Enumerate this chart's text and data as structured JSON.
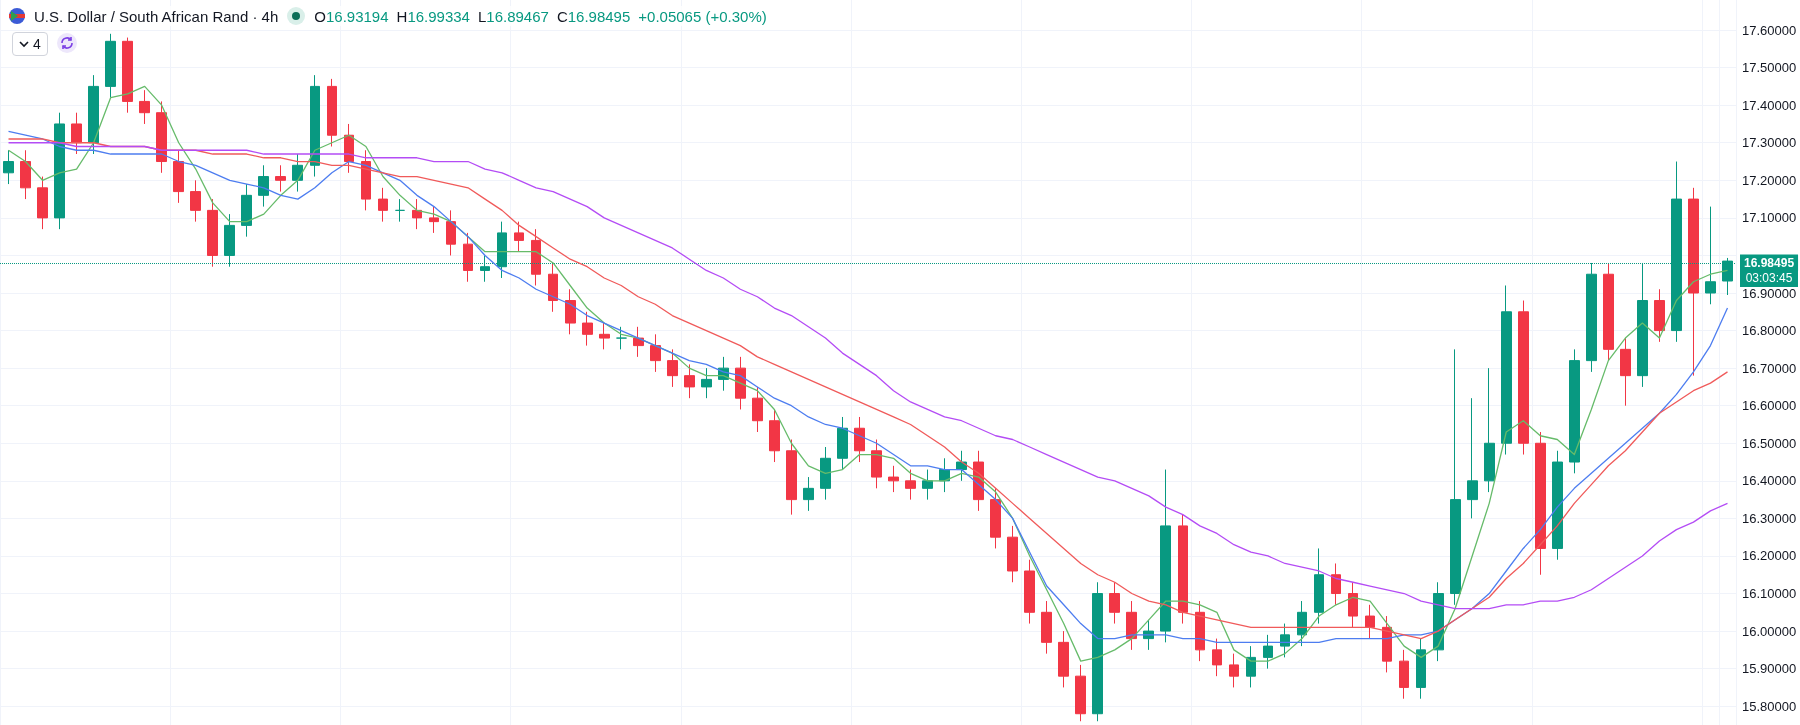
{
  "chart_data": {
    "type": "candlestick",
    "title": "U.S. Dollar / South African Rand · 4h",
    "annotations": [
      "O16.93194",
      "H16.99334",
      "L16.89467",
      "C16.98495",
      "+0.05065 (+0.30%)",
      "4",
      "03:03:45"
    ],
    "categories": [
      null,
      null,
      null,
      null,
      null,
      null,
      null,
      null,
      null,
      null,
      null,
      null,
      null,
      null,
      null,
      null,
      null,
      null,
      null,
      null,
      null,
      null,
      null,
      null,
      null,
      null,
      null,
      null,
      null,
      null,
      null,
      null,
      null,
      null,
      null,
      null,
      null,
      null,
      null,
      null,
      null,
      null,
      null,
      null,
      null,
      null,
      null,
      null,
      null,
      null,
      null,
      null,
      null,
      null,
      null,
      null,
      null,
      null,
      null,
      null,
      null,
      null,
      null,
      null,
      null,
      null,
      null,
      null,
      null,
      null,
      null,
      null,
      null,
      null,
      null,
      null,
      null,
      null,
      null,
      null,
      null,
      null,
      null,
      null,
      null,
      null,
      null,
      null,
      null,
      null,
      null,
      null,
      null,
      null,
      null,
      null,
      null,
      null,
      null,
      null,
      null,
      null
    ],
    "ohlc": [
      [
        17.22,
        17.28,
        17.19,
        17.25
      ],
      [
        17.25,
        17.28,
        17.15,
        17.18
      ],
      [
        17.18,
        17.21,
        17.07,
        17.1
      ],
      [
        17.1,
        17.38,
        17.07,
        17.35
      ],
      [
        17.35,
        17.38,
        17.27,
        17.3
      ],
      [
        17.3,
        17.48,
        17.27,
        17.45
      ],
      [
        17.45,
        17.59,
        17.42,
        17.57
      ],
      [
        17.57,
        17.58,
        17.38,
        17.41
      ],
      [
        17.41,
        17.44,
        17.35,
        17.38
      ],
      [
        17.38,
        17.41,
        17.22,
        17.25
      ],
      [
        17.25,
        17.28,
        17.14,
        17.17
      ],
      [
        17.17,
        17.2,
        17.09,
        17.12
      ],
      [
        17.12,
        17.15,
        16.97,
        17.0
      ],
      [
        17.0,
        17.11,
        16.97,
        17.08
      ],
      [
        17.08,
        17.19,
        17.05,
        17.16
      ],
      [
        17.16,
        17.24,
        17.13,
        17.21
      ],
      [
        17.21,
        17.24,
        17.17,
        17.2
      ],
      [
        17.2,
        17.27,
        17.17,
        17.24
      ],
      [
        17.24,
        17.48,
        17.21,
        17.45
      ],
      [
        17.45,
        17.47,
        17.29,
        17.32
      ],
      [
        17.32,
        17.35,
        17.22,
        17.25
      ],
      [
        17.25,
        17.28,
        17.12,
        17.15
      ],
      [
        17.15,
        17.18,
        17.09,
        17.12
      ],
      [
        17.12,
        17.15,
        17.09,
        17.12
      ],
      [
        17.12,
        17.15,
        17.07,
        17.1
      ],
      [
        17.1,
        17.13,
        17.06,
        17.09
      ],
      [
        17.09,
        17.12,
        17.0,
        17.03
      ],
      [
        17.03,
        17.06,
        16.93,
        16.96
      ],
      [
        16.96,
        17.0,
        16.93,
        16.97
      ],
      [
        16.97,
        17.09,
        16.94,
        17.06
      ],
      [
        17.06,
        17.09,
        17.01,
        17.04
      ],
      [
        17.04,
        17.07,
        16.92,
        16.95
      ],
      [
        16.95,
        16.98,
        16.85,
        16.88
      ],
      [
        16.88,
        16.91,
        16.79,
        16.82
      ],
      [
        16.82,
        16.85,
        16.76,
        16.79
      ],
      [
        16.79,
        16.82,
        16.75,
        16.78
      ],
      [
        16.78,
        16.81,
        16.75,
        16.78
      ],
      [
        16.78,
        16.81,
        16.73,
        16.76
      ],
      [
        16.76,
        16.79,
        16.69,
        16.72
      ],
      [
        16.72,
        16.75,
        16.65,
        16.68
      ],
      [
        16.68,
        16.71,
        16.62,
        16.65
      ],
      [
        16.65,
        16.7,
        16.62,
        16.67
      ],
      [
        16.67,
        16.73,
        16.64,
        16.7
      ],
      [
        16.7,
        16.73,
        16.59,
        16.62
      ],
      [
        16.62,
        16.65,
        16.53,
        16.56
      ],
      [
        16.56,
        16.59,
        16.45,
        16.48
      ],
      [
        16.48,
        16.51,
        16.31,
        16.35
      ],
      [
        16.35,
        16.41,
        16.32,
        16.38
      ],
      [
        16.38,
        16.49,
        16.35,
        16.46
      ],
      [
        16.46,
        16.57,
        16.43,
        16.54
      ],
      [
        16.54,
        16.57,
        16.45,
        16.48
      ],
      [
        16.48,
        16.51,
        16.38,
        16.41
      ],
      [
        16.41,
        16.44,
        16.37,
        16.4
      ],
      [
        16.4,
        16.43,
        16.35,
        16.38
      ],
      [
        16.38,
        16.43,
        16.35,
        16.4
      ],
      [
        16.4,
        16.46,
        16.37,
        16.43
      ],
      [
        16.43,
        16.48,
        16.4,
        16.45
      ],
      [
        16.45,
        16.48,
        16.32,
        16.35
      ],
      [
        16.35,
        16.38,
        16.22,
        16.25
      ],
      [
        16.25,
        16.28,
        16.13,
        16.16
      ],
      [
        16.16,
        16.19,
        16.02,
        16.05
      ],
      [
        16.05,
        16.08,
        15.94,
        15.97
      ],
      [
        15.97,
        16.0,
        15.85,
        15.88
      ],
      [
        15.88,
        15.91,
        15.76,
        15.78
      ],
      [
        15.78,
        16.13,
        15.76,
        16.1
      ],
      [
        16.1,
        16.13,
        16.02,
        16.05
      ],
      [
        16.05,
        16.08,
        15.95,
        15.98
      ],
      [
        15.98,
        16.03,
        15.95,
        16.0
      ],
      [
        16.0,
        16.43,
        15.97,
        16.28
      ],
      [
        16.28,
        16.31,
        16.02,
        16.05
      ],
      [
        16.05,
        16.08,
        15.92,
        15.95
      ],
      [
        15.95,
        15.98,
        15.88,
        15.91
      ],
      [
        15.91,
        15.94,
        15.85,
        15.88
      ],
      [
        15.88,
        15.96,
        15.85,
        15.93
      ],
      [
        15.93,
        15.99,
        15.9,
        15.96
      ],
      [
        15.96,
        16.02,
        15.93,
        15.99
      ],
      [
        15.99,
        16.08,
        15.96,
        16.05
      ],
      [
        16.05,
        16.22,
        16.02,
        16.15
      ],
      [
        16.15,
        16.18,
        16.07,
        16.1
      ],
      [
        16.1,
        16.13,
        16.01,
        16.04
      ],
      [
        16.04,
        16.07,
        15.98,
        16.01
      ],
      [
        16.01,
        16.04,
        15.89,
        15.92
      ],
      [
        15.92,
        15.95,
        15.82,
        15.85
      ],
      [
        15.85,
        15.98,
        15.82,
        15.95
      ],
      [
        15.95,
        16.13,
        15.92,
        16.1
      ],
      [
        16.1,
        16.75,
        16.07,
        16.35
      ],
      [
        16.35,
        16.62,
        16.3,
        16.4
      ],
      [
        16.4,
        16.7,
        16.37,
        16.5
      ],
      [
        16.5,
        16.92,
        16.47,
        16.85
      ],
      [
        16.85,
        16.88,
        16.47,
        16.5
      ],
      [
        16.5,
        16.53,
        16.15,
        16.22
      ],
      [
        16.22,
        16.48,
        16.19,
        16.45
      ],
      [
        16.45,
        16.75,
        16.42,
        16.72
      ],
      [
        16.72,
        16.98,
        16.69,
        16.95
      ],
      [
        16.95,
        16.98,
        16.72,
        16.75
      ],
      [
        16.75,
        16.78,
        16.6,
        16.68
      ],
      [
        16.68,
        16.98,
        16.65,
        16.88
      ],
      [
        16.88,
        16.91,
        16.77,
        16.8
      ],
      [
        16.8,
        17.25,
        16.77,
        17.15
      ],
      [
        17.15,
        17.18,
        16.68,
        16.9
      ],
      [
        16.9,
        17.13,
        16.87,
        16.93
      ],
      [
        16.93194,
        16.99334,
        16.89467,
        16.98495
      ]
    ],
    "series": [
      {
        "type": "line",
        "color": "#66bb6a",
        "values": [
          17.28,
          17.25,
          17.2,
          17.22,
          17.23,
          17.3,
          17.42,
          17.43,
          17.45,
          17.4,
          17.3,
          17.23,
          17.14,
          17.09,
          17.09,
          17.11,
          17.16,
          17.2,
          17.28,
          17.3,
          17.32,
          17.29,
          17.21,
          17.16,
          17.12,
          17.11,
          17.09,
          17.05,
          17.01,
          17.01,
          17.01,
          17.01,
          16.98,
          16.92,
          16.86,
          16.82,
          16.79,
          16.78,
          16.76,
          16.74,
          16.7,
          16.68,
          16.68,
          16.66,
          16.64,
          16.59,
          16.5,
          16.44,
          16.42,
          16.43,
          16.47,
          16.47,
          16.46,
          16.42,
          16.4,
          16.4,
          16.42,
          16.41,
          16.37,
          16.3,
          16.2,
          16.11,
          16.02,
          15.92,
          15.93,
          15.95,
          15.98,
          16.03,
          16.08,
          16.08,
          16.07,
          16.05,
          15.95,
          15.92,
          15.92,
          15.94,
          15.98,
          16.04,
          16.07,
          16.09,
          16.08,
          16.02,
          15.96,
          15.93,
          15.96,
          16.06,
          16.2,
          16.34,
          16.53,
          16.56,
          16.52,
          16.51,
          16.47,
          16.59,
          16.72,
          16.78,
          16.82,
          16.78,
          16.88,
          16.93,
          16.95,
          16.96
        ]
      },
      {
        "type": "line",
        "color": "#4d7df0",
        "values": [
          17.33,
          17.32,
          17.31,
          17.29,
          17.28,
          17.28,
          17.27,
          17.27,
          17.27,
          17.27,
          17.25,
          17.24,
          17.22,
          17.2,
          17.19,
          17.18,
          17.16,
          17.15,
          17.18,
          17.22,
          17.25,
          17.24,
          17.22,
          17.2,
          17.16,
          17.13,
          17.09,
          17.05,
          17.0,
          16.96,
          16.94,
          16.91,
          16.89,
          16.87,
          16.84,
          16.82,
          16.8,
          16.78,
          16.76,
          16.74,
          16.72,
          16.71,
          16.69,
          16.68,
          16.65,
          16.62,
          16.6,
          16.57,
          16.55,
          16.54,
          16.52,
          16.5,
          16.47,
          16.44,
          16.44,
          16.43,
          16.43,
          16.39,
          16.35,
          16.3,
          16.21,
          16.12,
          16.07,
          16.02,
          15.98,
          15.98,
          15.99,
          15.99,
          15.99,
          15.98,
          15.98,
          15.97,
          15.97,
          15.97,
          15.97,
          15.97,
          15.97,
          15.97,
          15.98,
          15.98,
          15.98,
          15.98,
          15.99,
          15.99,
          16.0,
          16.03,
          16.06,
          16.1,
          16.16,
          16.22,
          16.27,
          16.33,
          16.38,
          16.42,
          16.46,
          16.5,
          16.54,
          16.58,
          16.63,
          16.69,
          16.76,
          16.86
        ]
      },
      {
        "type": "line",
        "color": "#f05a5a",
        "values": [
          17.31,
          17.31,
          17.31,
          17.3,
          17.3,
          17.3,
          17.29,
          17.29,
          17.29,
          17.28,
          17.28,
          17.28,
          17.27,
          17.27,
          17.27,
          17.26,
          17.26,
          17.25,
          17.25,
          17.24,
          17.24,
          17.23,
          17.22,
          17.21,
          17.21,
          17.2,
          17.19,
          17.18,
          17.15,
          17.12,
          17.08,
          17.05,
          17.02,
          16.99,
          16.97,
          16.94,
          16.92,
          16.89,
          16.87,
          16.84,
          16.82,
          16.8,
          16.78,
          16.76,
          16.73,
          16.71,
          16.69,
          16.67,
          16.65,
          16.63,
          16.61,
          16.59,
          16.57,
          16.55,
          16.52,
          16.49,
          16.45,
          16.42,
          16.38,
          16.34,
          16.3,
          16.26,
          16.22,
          16.18,
          16.15,
          16.13,
          16.1,
          16.08,
          16.07,
          16.05,
          16.04,
          16.03,
          16.02,
          16.01,
          16.01,
          16.01,
          16.01,
          16.01,
          16.01,
          16.01,
          16.01,
          16.0,
          15.99,
          15.98,
          16.0,
          16.03,
          16.06,
          16.09,
          16.14,
          16.18,
          16.23,
          16.28,
          16.34,
          16.39,
          16.44,
          16.48,
          16.53,
          16.58,
          16.61,
          16.64,
          16.66,
          16.69
        ]
      },
      {
        "type": "line",
        "color": "#b44cf5",
        "values": [
          17.3,
          17.3,
          17.3,
          17.3,
          17.29,
          17.29,
          17.29,
          17.29,
          17.29,
          17.28,
          17.28,
          17.28,
          17.28,
          17.28,
          17.28,
          17.27,
          17.27,
          17.27,
          17.27,
          17.27,
          17.27,
          17.26,
          17.26,
          17.26,
          17.26,
          17.25,
          17.25,
          17.25,
          17.23,
          17.22,
          17.2,
          17.18,
          17.17,
          17.15,
          17.13,
          17.1,
          17.08,
          17.06,
          17.04,
          17.02,
          16.99,
          16.96,
          16.94,
          16.91,
          16.89,
          16.86,
          16.84,
          16.81,
          16.78,
          16.74,
          16.71,
          16.68,
          16.64,
          16.61,
          16.59,
          16.57,
          16.56,
          16.54,
          16.52,
          16.51,
          16.49,
          16.47,
          16.45,
          16.43,
          16.41,
          16.4,
          16.38,
          16.36,
          16.33,
          16.31,
          16.28,
          16.26,
          16.23,
          16.21,
          16.2,
          16.18,
          16.17,
          16.16,
          16.14,
          16.13,
          16.12,
          16.11,
          16.1,
          16.08,
          16.07,
          16.06,
          16.06,
          16.06,
          16.07,
          16.07,
          16.08,
          16.08,
          16.09,
          16.11,
          16.14,
          16.17,
          16.2,
          16.24,
          16.27,
          16.29,
          16.32,
          16.34
        ]
      }
    ],
    "ylim": [
      15.75,
      17.68
    ],
    "yticks": [
      {
        "value": 15.8,
        "label": "15.80000"
      },
      {
        "value": 15.9,
        "label": "15.90000"
      },
      {
        "value": 16.0,
        "label": "16.00000"
      },
      {
        "value": 16.1,
        "label": "16.10000"
      },
      {
        "value": 16.2,
        "label": "16.20000"
      },
      {
        "value": 16.3,
        "label": "16.30000"
      },
      {
        "value": 16.4,
        "label": "16.40000"
      },
      {
        "value": 16.5,
        "label": "16.50000"
      },
      {
        "value": 16.6,
        "label": "16.60000"
      },
      {
        "value": 16.7,
        "label": "16.70000"
      },
      {
        "value": 16.8,
        "label": "16.80000"
      },
      {
        "value": 16.9,
        "label": "16.90000"
      },
      {
        "value": 17.0,
        "label": null
      },
      {
        "value": 17.1,
        "label": "17.10000"
      },
      {
        "value": 17.2,
        "label": "17.20000"
      },
      {
        "value": 17.3,
        "label": "17.30000"
      },
      {
        "value": 17.4,
        "label": "17.40000"
      },
      {
        "value": 17.5,
        "label": "17.50000"
      },
      {
        "value": 17.6,
        "label": "17.60000"
      }
    ],
    "ref_lines": [
      {
        "axis": "y",
        "value": 16.98495,
        "label": "16.98495",
        "color": "#089981",
        "line_style": "dotted"
      }
    ],
    "grid": true,
    "tick_labels": "y"
  }
}
